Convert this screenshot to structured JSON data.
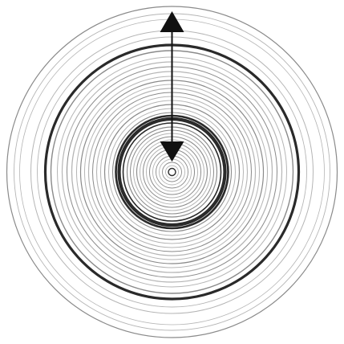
{
  "diagram": {
    "kind": "concentric-rings",
    "colors": {
      "background": "#ffffff",
      "ring_light": "#b5b5b5",
      "ring_mid": "#8a8a8a",
      "ring_dark": "#2a2a2a",
      "arrow": "#111111"
    },
    "arrow": {
      "direction": "vertical",
      "heads": [
        "top",
        "center"
      ]
    },
    "icons": {
      "top_arrowhead": "arrowhead-up-icon",
      "center_arrowhead": "arrowhead-down-icon",
      "center_point": "center-dot-icon"
    }
  }
}
